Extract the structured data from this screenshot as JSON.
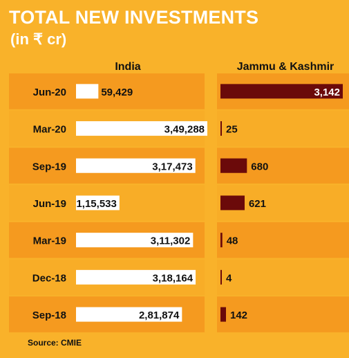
{
  "header": {
    "title": "TOTAL NEW INVESTMENTS",
    "subtitle": "(in ₹ cr)"
  },
  "columns": {
    "left": "India",
    "right": "Jammu & Kashmir"
  },
  "colors": {
    "background": "#f9b22a",
    "band_dark": "#f59a1f",
    "band_light": "#f8ad27",
    "india_bar": "#ffffff",
    "jk_bar": "#6b0a0a",
    "text": "#111111"
  },
  "chart_data": {
    "type": "bar",
    "title": "TOTAL NEW INVESTMENTS",
    "subtitle": "(in ₹ cr)",
    "categories": [
      "Jun-20",
      "Mar-20",
      "Sep-19",
      "Jun-19",
      "Mar-19",
      "Dec-18",
      "Sep-18"
    ],
    "series": [
      {
        "name": "India",
        "values": [
          59429,
          349288,
          317473,
          115533,
          311302,
          318164,
          281874
        ],
        "labels": [
          "59,429",
          "3,49,288",
          "3,17,473",
          "1,15,533",
          "3,11,302",
          "3,18,164",
          "2,81,874"
        ]
      },
      {
        "name": "Jammu & Kashmir",
        "values": [
          3142,
          25,
          680,
          621,
          48,
          4,
          142
        ],
        "labels": [
          "3,142",
          "25",
          "680",
          "621",
          "48",
          "4",
          "142"
        ]
      }
    ],
    "orientation": "horizontal",
    "legend": "column headers"
  },
  "source": "Source: CMIE"
}
